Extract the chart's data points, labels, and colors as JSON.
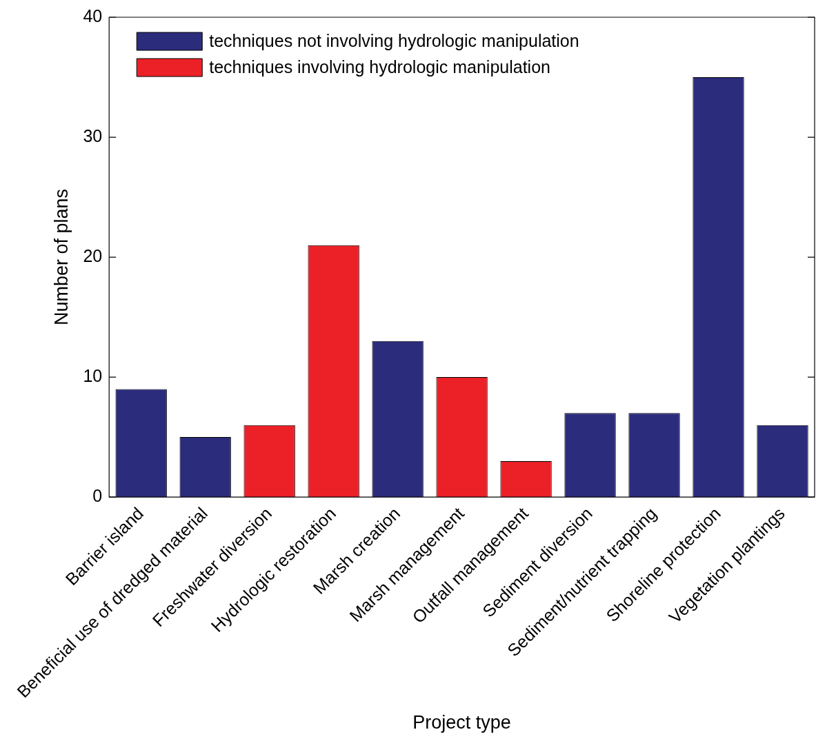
{
  "chart_data": {
    "type": "bar",
    "xlabel": "Project type",
    "ylabel": "Number of plans",
    "categories": [
      "Barrier island",
      "Beneficial use of dredged material",
      "Freshwater diversion",
      "Hydrologic restoration",
      "Marsh creation",
      "Marsh management",
      "Outfall management",
      "Sediment diversion",
      "Sediment/nutrient trapping",
      "Shoreline protection",
      "Vegetation plantings"
    ],
    "series": [
      {
        "name": "techniques not involving hydrologic manipulation",
        "color": "#2b2c7c",
        "values": [
          9,
          5,
          null,
          null,
          13,
          null,
          null,
          7,
          7,
          35,
          6
        ]
      },
      {
        "name": "techniques involving hydrologic manipulation",
        "color": "#ec2127",
        "values": [
          null,
          null,
          6,
          21,
          null,
          10,
          3,
          null,
          null,
          null,
          null
        ]
      }
    ],
    "ylim": [
      0,
      40
    ],
    "yticks": [
      0,
      10,
      20,
      30,
      40
    ],
    "grid": false,
    "legend": "top left"
  }
}
